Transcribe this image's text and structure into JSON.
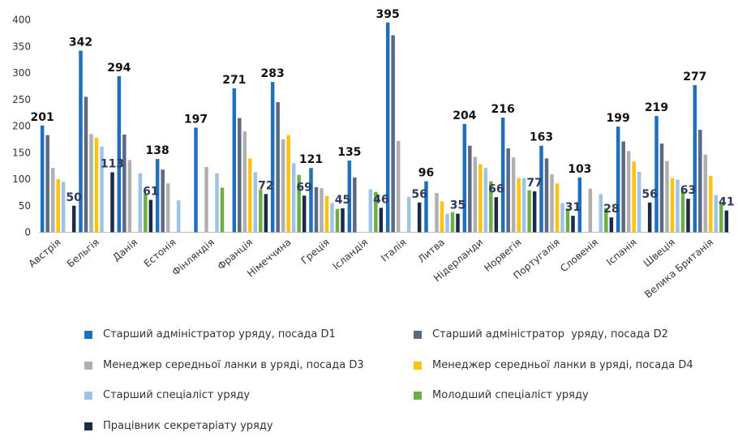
{
  "chart_data": {
    "type": "bar",
    "title": "",
    "xlabel": "",
    "ylabel": "",
    "ylim": [
      0,
      400
    ],
    "yticks": [
      0,
      50,
      100,
      150,
      200,
      250,
      300,
      350,
      400
    ],
    "grid": false,
    "legend_position": "bottom",
    "categories": [
      "Австрія",
      "Бельгія",
      "Данія",
      "Естонія",
      "Фінляндія",
      "Франція",
      "Німеччина",
      "Греція",
      "Ісландія",
      "Італія",
      "Литва",
      "Нідерланди",
      "Норвегія",
      "Португалія",
      "Словенія",
      "Іспанія",
      "Швеція",
      "Велика Британія"
    ],
    "series": [
      {
        "name": "Старший адміністратор уряду, посада D1",
        "color": "#1f6fbf",
        "values": [
          201,
          342,
          294,
          138,
          197,
          271,
          283,
          121,
          135,
          395,
          96,
          204,
          216,
          163,
          103,
          199,
          219,
          277
        ]
      },
      {
        "name": "Старший адміністратор  уряду, посада D2",
        "color": "#5b6a80",
        "values": [
          183,
          255,
          184,
          118,
          null,
          215,
          245,
          85,
          103,
          371,
          null,
          163,
          158,
          139,
          null,
          171,
          167,
          193
        ]
      },
      {
        "name": "Менеджер середньої ланки в уряді, посада D3",
        "color": "#b0b0b0",
        "values": [
          121,
          185,
          136,
          92,
          123,
          190,
          175,
          83,
          null,
          172,
          74,
          142,
          141,
          109,
          82,
          153,
          134,
          146
        ]
      },
      {
        "name": "Менеджер середньої ланки в уряді, посада D4",
        "color": "#ffc20e",
        "values": [
          100,
          178,
          null,
          null,
          null,
          139,
          183,
          68,
          null,
          null,
          58,
          128,
          102,
          92,
          null,
          133,
          102,
          106
        ]
      },
      {
        "name": "Старший спеціаліст уряду",
        "color": "#9dc3e6",
        "values": [
          95,
          161,
          111,
          60,
          111,
          113,
          130,
          55,
          81,
          67,
          35,
          121,
          102,
          55,
          72,
          114,
          99,
          70
        ]
      },
      {
        "name": "Молодший спеціаліст уряду",
        "color": "#70ad47",
        "values": [
          null,
          null,
          72,
          null,
          84,
          80,
          108,
          44,
          76,
          null,
          38,
          96,
          79,
          45,
          46,
          null,
          78,
          55
        ]
      },
      {
        "name": "Працівник секретаріату уряду",
        "color": "#1c2a4a",
        "values": [
          50,
          113,
          61,
          null,
          null,
          72,
          69,
          45,
          46,
          56,
          35,
          66,
          77,
          31,
          28,
          56,
          63,
          41
        ]
      }
    ],
    "data_labels": [
      {
        "category": "Австрія",
        "series": 0,
        "text": "201"
      },
      {
        "category": "Австрія",
        "series": 6,
        "text": "50"
      },
      {
        "category": "Бельгія",
        "series": 0,
        "text": "342"
      },
      {
        "category": "Бельгія",
        "series": 6,
        "text": "113"
      },
      {
        "category": "Данія",
        "series": 0,
        "text": "294"
      },
      {
        "category": "Данія",
        "series": 6,
        "text": "61"
      },
      {
        "category": "Естонія",
        "series": 0,
        "text": "138"
      },
      {
        "category": "Фінляндія",
        "series": 0,
        "text": "197"
      },
      {
        "category": "Франція",
        "series": 0,
        "text": "271"
      },
      {
        "category": "Франція",
        "series": 6,
        "text": "72"
      },
      {
        "category": "Німеччина",
        "series": 0,
        "text": "283"
      },
      {
        "category": "Німеччина",
        "series": 6,
        "text": "69"
      },
      {
        "category": "Греція",
        "series": 0,
        "text": "121"
      },
      {
        "category": "Греція",
        "series": 6,
        "text": "45"
      },
      {
        "category": "Ісландія",
        "series": 0,
        "text": "135"
      },
      {
        "category": "Ісландія",
        "series": 6,
        "text": "46"
      },
      {
        "category": "Італія",
        "series": 0,
        "text": "395"
      },
      {
        "category": "Італія",
        "series": 6,
        "text": "56"
      },
      {
        "category": "Литва",
        "series": 0,
        "text": "96"
      },
      {
        "category": "Литва",
        "series": 6,
        "text": "35"
      },
      {
        "category": "Нідерланди",
        "series": 0,
        "text": "204"
      },
      {
        "category": "Нідерланди",
        "series": 6,
        "text": "66"
      },
      {
        "category": "Норвегія",
        "series": 0,
        "text": "216"
      },
      {
        "category": "Норвегія",
        "series": 6,
        "text": "77"
      },
      {
        "category": "Португалія",
        "series": 0,
        "text": "163"
      },
      {
        "category": "Португалія",
        "series": 6,
        "text": "31"
      },
      {
        "category": "Словенія",
        "series": 0,
        "text": "103"
      },
      {
        "category": "Словенія",
        "series": 6,
        "text": "28"
      },
      {
        "category": "Іспанія",
        "series": 0,
        "text": "199"
      },
      {
        "category": "Іспанія",
        "series": 6,
        "text": "56"
      },
      {
        "category": "Швеція",
        "series": 0,
        "text": "219"
      },
      {
        "category": "Швеція",
        "series": 6,
        "text": "63"
      },
      {
        "category": "Велика Британія",
        "series": 0,
        "text": "277"
      },
      {
        "category": "Велика Британія",
        "series": 6,
        "text": "41"
      }
    ],
    "label_colors": {
      "top": "#111111",
      "bottom": "#2d3a5e"
    }
  }
}
